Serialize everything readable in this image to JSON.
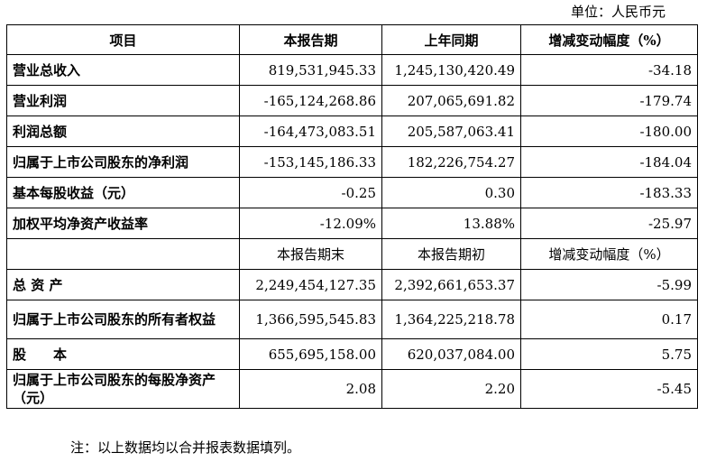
{
  "unit_label": "单位：人民币元",
  "header": [
    "项目",
    "本报告期",
    "上年同期",
    "增减变动幅度（%）"
  ],
  "rows_a": [
    {
      "item": "营业总收入",
      "current": "819,531,945.33",
      "prior": "1,245,130,420.49",
      "change": "-34.18"
    },
    {
      "item": "营业利润",
      "current": "-165,124,268.86",
      "prior": "207,065,691.82",
      "change": "-179.74"
    },
    {
      "item": "利润总额",
      "current": "-164,473,083.51",
      "prior": "205,587,063.41",
      "change": "-180.00"
    },
    {
      "item": "归属于上市公司股东的净利润",
      "current": "-153,145,186.33",
      "prior": "182,226,754.27",
      "change": "-184.04"
    },
    {
      "item": "基本每股收益（元）",
      "current": "-0.25",
      "prior": "0.30",
      "change": "-183.33"
    },
    {
      "item": "加权平均净资产收益率",
      "current": "-12.09%",
      "prior": "13.88%",
      "change": "-25.97"
    }
  ],
  "header2": [
    "",
    "本报告期末",
    "本报告期初",
    "增减变动幅度（%）"
  ],
  "rows_b": [
    {
      "item": "总 资 产",
      "end": "2,249,454,127.35",
      "begin": "2,392,661,653.37",
      "change": "-5.99"
    },
    {
      "item": "归属于上市公司股东的所有者权益",
      "end": "1,366,595,545.83",
      "begin": "1,364,225,218.78",
      "change": "0.17"
    },
    {
      "item": "股　　本",
      "end": "655,695,158.00",
      "begin": "620,037,084.00",
      "change": "5.75"
    },
    {
      "item": "归属于上市公司股东的每股净资产（元）",
      "end": "2.08",
      "begin": "2.20",
      "change": "-5.45"
    }
  ],
  "note": "注：以上数据均以合并报表数据填列。"
}
